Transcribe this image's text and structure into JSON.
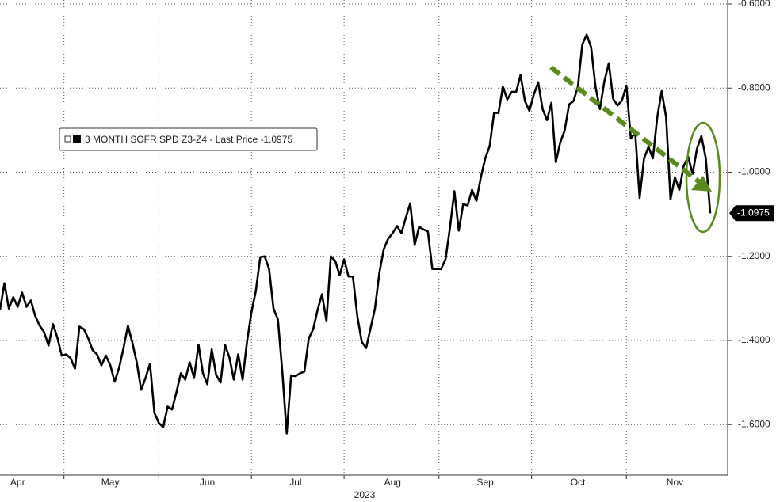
{
  "chart_data": {
    "type": "line",
    "x_label": "2023",
    "categories": [
      null,
      null,
      null,
      null,
      "Apr",
      null,
      null,
      null,
      null,
      null,
      null,
      null,
      null,
      null,
      null,
      null,
      null,
      null,
      null,
      null,
      null,
      null,
      null,
      null,
      null,
      "May",
      null,
      null,
      null,
      null,
      null,
      null,
      null,
      null,
      null,
      null,
      null,
      null,
      null,
      null,
      null,
      null,
      null,
      null,
      null,
      null,
      null,
      "Jun",
      null,
      null,
      null,
      null,
      null,
      null,
      null,
      null,
      null,
      null,
      null,
      null,
      null,
      null,
      null,
      null,
      null,
      null,
      null,
      "Jul",
      null,
      null,
      null,
      null,
      null,
      null,
      null,
      null,
      null,
      null,
      null,
      null,
      null,
      null,
      null,
      null,
      null,
      null,
      null,
      null,
      null,
      "Aug",
      null,
      null,
      null,
      null,
      null,
      null,
      null,
      null,
      null,
      null,
      null,
      null,
      null,
      null,
      null,
      null,
      null,
      null,
      null,
      null,
      "Sep",
      null,
      null,
      null,
      null,
      null,
      null,
      null,
      null,
      null,
      null,
      null,
      null,
      null,
      null,
      null,
      null,
      null,
      null,
      null,
      null,
      "Oct",
      null,
      null,
      null,
      null,
      null,
      null,
      null,
      null,
      null,
      null,
      null,
      null,
      null,
      null,
      null,
      null,
      null,
      null,
      null,
      null,
      null,
      "Nov",
      null,
      null,
      null,
      null,
      null,
      null,
      null,
      null
    ],
    "series": [
      {
        "name": "3 MONTH SOFR SPD Z3-Z4 - Last Price -1.0975",
        "color": "#000000",
        "values": [
          -1.327,
          -1.264,
          -1.324,
          -1.297,
          -1.32,
          -1.286,
          -1.32,
          -1.305,
          -1.342,
          -1.365,
          -1.38,
          -1.412,
          -1.361,
          -1.393,
          -1.436,
          -1.433,
          -1.442,
          -1.467,
          -1.367,
          -1.373,
          -1.395,
          -1.423,
          -1.433,
          -1.459,
          -1.436,
          -1.459,
          -1.498,
          -1.465,
          -1.418,
          -1.365,
          -1.405,
          -1.452,
          -1.517,
          -1.489,
          -1.455,
          -1.572,
          -1.596,
          -1.606,
          -1.557,
          -1.564,
          -1.523,
          -1.478,
          -1.493,
          -1.452,
          -1.489,
          -1.41,
          -1.478,
          -1.504,
          -1.421,
          -1.482,
          -1.5,
          -1.41,
          -1.44,
          -1.493,
          -1.433,
          -1.493,
          -1.403,
          -1.333,
          -1.282,
          -1.202,
          -1.2,
          -1.23,
          -1.324,
          -1.35,
          -1.474,
          -1.621,
          -1.483,
          -1.485,
          -1.478,
          -1.474,
          -1.395,
          -1.373,
          -1.327,
          -1.29,
          -1.354,
          -1.2,
          -1.211,
          -1.245,
          -1.207,
          -1.248,
          -1.248,
          -1.342,
          -1.403,
          -1.418,
          -1.371,
          -1.324,
          -1.239,
          -1.183,
          -1.158,
          -1.145,
          -1.128,
          -1.145,
          -1.108,
          -1.074,
          -1.173,
          -1.13,
          -1.136,
          -1.141,
          -1.23,
          -1.23,
          -1.23,
          -1.207,
          -1.132,
          -1.045,
          -1.139,
          -1.076,
          -1.079,
          -1.042,
          -1.068,
          -1.012,
          -0.967,
          -0.938,
          -0.859,
          -0.859,
          -0.797,
          -0.827,
          -0.809,
          -0.809,
          -0.769,
          -0.831,
          -0.854,
          -0.816,
          -0.786,
          -0.85,
          -0.876,
          -0.835,
          -0.976,
          -0.929,
          -0.901,
          -0.839,
          -0.831,
          -0.797,
          -0.696,
          -0.673,
          -0.703,
          -0.797,
          -0.85,
          -0.784,
          -0.741,
          -0.826,
          -0.841,
          -0.829,
          -0.794,
          -0.92,
          -0.906,
          -1.061,
          -0.967,
          -0.94,
          -0.967,
          -0.869,
          -0.807,
          -0.869,
          -1.064,
          -1.012,
          -1.042,
          -0.985,
          -0.963,
          -1.004,
          -0.944,
          -0.914,
          -0.967,
          -1.0975
        ],
        "value_labels_last": "-1.0975"
      }
    ],
    "ylim": [
      -1.72,
      -0.6
    ],
    "yticks": [
      {
        "value": -0.6,
        "label": "-0.6000"
      },
      {
        "value": -0.8,
        "label": "-0.8000"
      },
      {
        "value": -1.0,
        "label": "-1.0000"
      },
      {
        "value": -1.2,
        "label": "-1.2000"
      },
      {
        "value": -1.4,
        "label": "-1.4000"
      },
      {
        "value": -1.6,
        "label": "-1.6000"
      }
    ],
    "grid": true
  }
}
